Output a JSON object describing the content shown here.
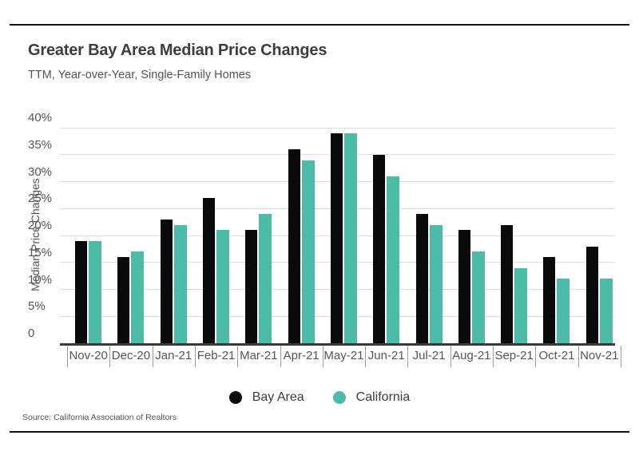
{
  "page": {
    "title": "Greater Bay Area Median Price Changes",
    "subtitle": "TTM, Year-over-Year, Single-Family Homes",
    "source": "Source:  California Association of Realtors"
  },
  "legend": [
    {
      "label": "Bay Area",
      "color": "#0a0a0a"
    },
    {
      "label": "California",
      "color": "#4cbca9"
    }
  ],
  "chart_data": {
    "type": "bar",
    "title": "Greater Bay Area Median Price Changes",
    "subtitle": "TTM, Year-over-Year, Single-Family Homes",
    "xlabel": "",
    "ylabel": "Median Price Changes",
    "categories": [
      "Nov-20",
      "Dec-20",
      "Jan-21",
      "Feb-21",
      "Mar-21",
      "Apr-21",
      "May-21",
      "Jun-21",
      "Jul-21",
      "Aug-21",
      "Sep-21",
      "Oct-21",
      "Nov-21"
    ],
    "series": [
      {
        "name": "Bay Area",
        "color": "#0a0a0a",
        "values": [
          19,
          16,
          23,
          27,
          21,
          36,
          39,
          35,
          24,
          21,
          22,
          16,
          18
        ]
      },
      {
        "name": "California",
        "color": "#4cbca9",
        "values": [
          19,
          17,
          22,
          21,
          24,
          34,
          39,
          31,
          22,
          17,
          14,
          12,
          12
        ]
      }
    ],
    "ylim": [
      0,
      40
    ],
    "ytick_step": 5,
    "ytick_labels": [
      "0",
      "5%",
      "10%",
      "15%",
      "20%",
      "25%",
      "30%",
      "35%",
      "40%"
    ],
    "grid": true,
    "legend_position": "bottom",
    "gridline_color": "#dcdcdc",
    "axis_color": "#3a3a3a"
  }
}
